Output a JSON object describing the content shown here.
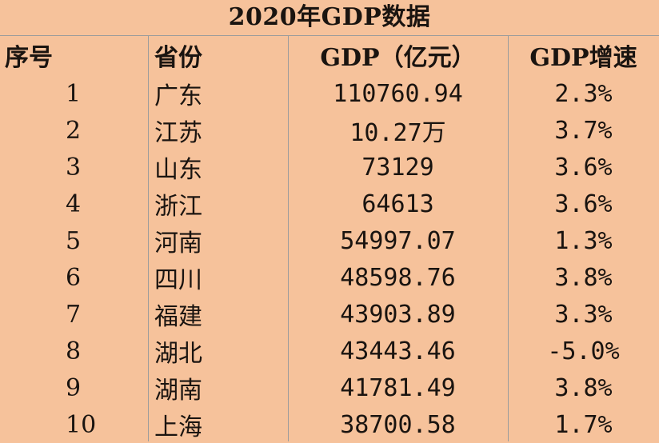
{
  "title": "2020年GDP数据",
  "columns": {
    "no": "序号",
    "province": "省份",
    "gdp": "GDP（亿元）",
    "growth": "GDP增速"
  },
  "rows": [
    {
      "no": "1",
      "province": "广东",
      "gdp": "110760.94",
      "growth": "2.3%"
    },
    {
      "no": "2",
      "province": "江苏",
      "gdp": "10.27万",
      "growth": "3.7%"
    },
    {
      "no": "3",
      "province": "山东",
      "gdp": "73129",
      "growth": "3.6%"
    },
    {
      "no": "4",
      "province": "浙江",
      "gdp": "64613",
      "growth": "3.6%"
    },
    {
      "no": "5",
      "province": "河南",
      "gdp": "54997.07",
      "growth": "1.3%"
    },
    {
      "no": "6",
      "province": "四川",
      "gdp": "48598.76",
      "growth": "3.8%"
    },
    {
      "no": "7",
      "province": "福建",
      "gdp": "43903.89",
      "growth": "3.3%"
    },
    {
      "no": "8",
      "province": "湖北",
      "gdp": "43443.46",
      "growth": "-5.0%"
    },
    {
      "no": "9",
      "province": "湖南",
      "gdp": "41781.49",
      "growth": "3.8%"
    },
    {
      "no": "10",
      "province": "上海",
      "gdp": "38700.58",
      "growth": "1.7%"
    }
  ],
  "colors": {
    "background": "#f6c29b",
    "text": "#1a1410",
    "gridline": "#9c9c9c"
  }
}
